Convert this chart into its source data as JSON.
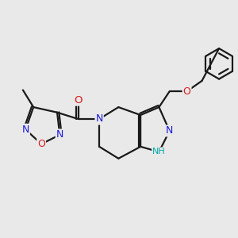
{
  "bg_color": "#e9e9e9",
  "bond_color": "#1a1a1a",
  "bond_width": 1.6,
  "atom_colors": {
    "N": "#1a1add",
    "O": "#dd1a1a",
    "C": "#1a1a1a",
    "H": "#00aaaa"
  },
  "font_size": 8.5
}
